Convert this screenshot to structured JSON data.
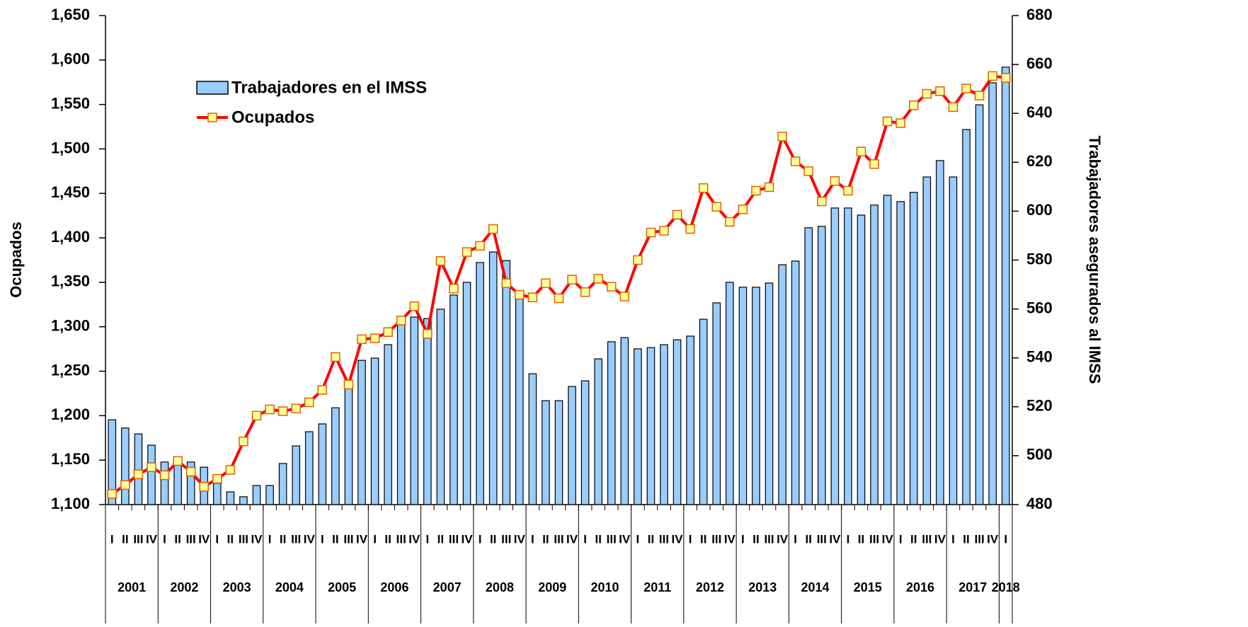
{
  "chart_data": {
    "type": "combo",
    "ylabel": "Ocupados",
    "y2label": "Trabajadores asegurados al IMSS",
    "categories": [
      "I",
      "II",
      "III",
      "IV",
      "I",
      "II",
      "III",
      "IV",
      "I",
      "II",
      "III",
      "IV",
      "I",
      "II",
      "III",
      "IV",
      "I",
      "II",
      "III",
      "IV",
      "I",
      "II",
      "III",
      "IV",
      "I",
      "II",
      "III",
      "IV",
      "I",
      "II",
      "III",
      "IV",
      "I",
      "II",
      "III",
      "IV",
      "I",
      "II",
      "III",
      "IV",
      "I",
      "II",
      "III",
      "IV",
      "I",
      "II",
      "III",
      "IV",
      "I",
      "II",
      "III",
      "IV",
      "I",
      "II",
      "III",
      "IV",
      "I",
      "II",
      "III",
      "IV",
      "I",
      "II",
      "III",
      "IV",
      "I",
      "II",
      "III",
      "IV",
      "I"
    ],
    "years": [
      "2001",
      "2002",
      "2003",
      "2004",
      "2005",
      "2006",
      "2007",
      "2008",
      "2009",
      "2010",
      "2011",
      "2012",
      "2013",
      "2014",
      "2015",
      "2016",
      "2017",
      "2018"
    ],
    "ylim": [
      1100,
      1650
    ],
    "yticks": [
      {
        "value": 1100,
        "label": "1,100"
      },
      {
        "value": 1150,
        "label": "1,150"
      },
      {
        "value": 1200,
        "label": "1,200"
      },
      {
        "value": 1250,
        "label": "1,250"
      },
      {
        "value": 1300,
        "label": "1,300"
      },
      {
        "value": 1350,
        "label": "1,350"
      },
      {
        "value": 1400,
        "label": "1,400"
      },
      {
        "value": 1450,
        "label": "1,450"
      },
      {
        "value": 1500,
        "label": "1,500"
      },
      {
        "value": 1550,
        "label": "1,550"
      },
      {
        "value": 1600,
        "label": "1,600"
      },
      {
        "value": 1650,
        "label": "1,650"
      }
    ],
    "y2lim": [
      480,
      680
    ],
    "y2ticks": [
      480,
      500,
      520,
      540,
      560,
      580,
      600,
      620,
      640,
      660,
      680
    ],
    "grid": false,
    "legend": "upper-left",
    "series": [
      {
        "name": "Trabajadores en el IMSS",
        "type": "bar",
        "axis": "y2",
        "color": "#99ccff",
        "values": [
          514.7,
          511.3,
          508.9,
          504.3,
          497.4,
          497.4,
          497.4,
          495.3,
          488.7,
          485.2,
          483.2,
          487.8,
          487.8,
          496.8,
          504.0,
          509.8,
          513.0,
          519.6,
          529.2,
          539.0,
          539.9,
          545.4,
          554.7,
          556.7,
          556.1,
          559.9,
          565.7,
          570.9,
          579.0,
          583.3,
          579.8,
          567.1,
          533.5,
          522.5,
          522.5,
          528.3,
          530.6,
          539.6,
          546.6,
          548.3,
          543.7,
          544.2,
          545.4,
          547.4,
          548.9,
          555.8,
          562.5,
          570.9,
          568.9,
          568.9,
          570.6,
          578.1,
          579.6,
          593.2,
          593.8,
          601.3,
          601.3,
          598.4,
          602.5,
          606.5,
          603.9,
          607.7,
          614.0,
          620.7,
          614.0,
          633.4,
          643.5,
          652.5,
          658.9
        ]
      },
      {
        "name": "Ocupados",
        "type": "line",
        "color": "#ff0000",
        "marker_color": "#ffff99",
        "values": [
          1112,
          1122,
          1134,
          1142,
          1133,
          1149,
          1137,
          1120,
          1129,
          1139,
          1171,
          1200,
          1207,
          1205,
          1208,
          1215,
          1229,
          1266,
          1235,
          1286,
          1287,
          1294,
          1307,
          1323,
          1292,
          1374,
          1343,
          1384,
          1391,
          1410,
          1349,
          1336,
          1333,
          1349,
          1332,
          1353,
          1339,
          1354,
          1345,
          1334,
          1375,
          1406,
          1408,
          1426,
          1410,
          1456,
          1435,
          1418,
          1432,
          1453,
          1457,
          1514,
          1486,
          1475,
          1441,
          1464,
          1453,
          1497,
          1483,
          1531,
          1529,
          1549,
          1562,
          1565,
          1547,
          1568,
          1560,
          1582,
          1580
        ]
      }
    ]
  }
}
